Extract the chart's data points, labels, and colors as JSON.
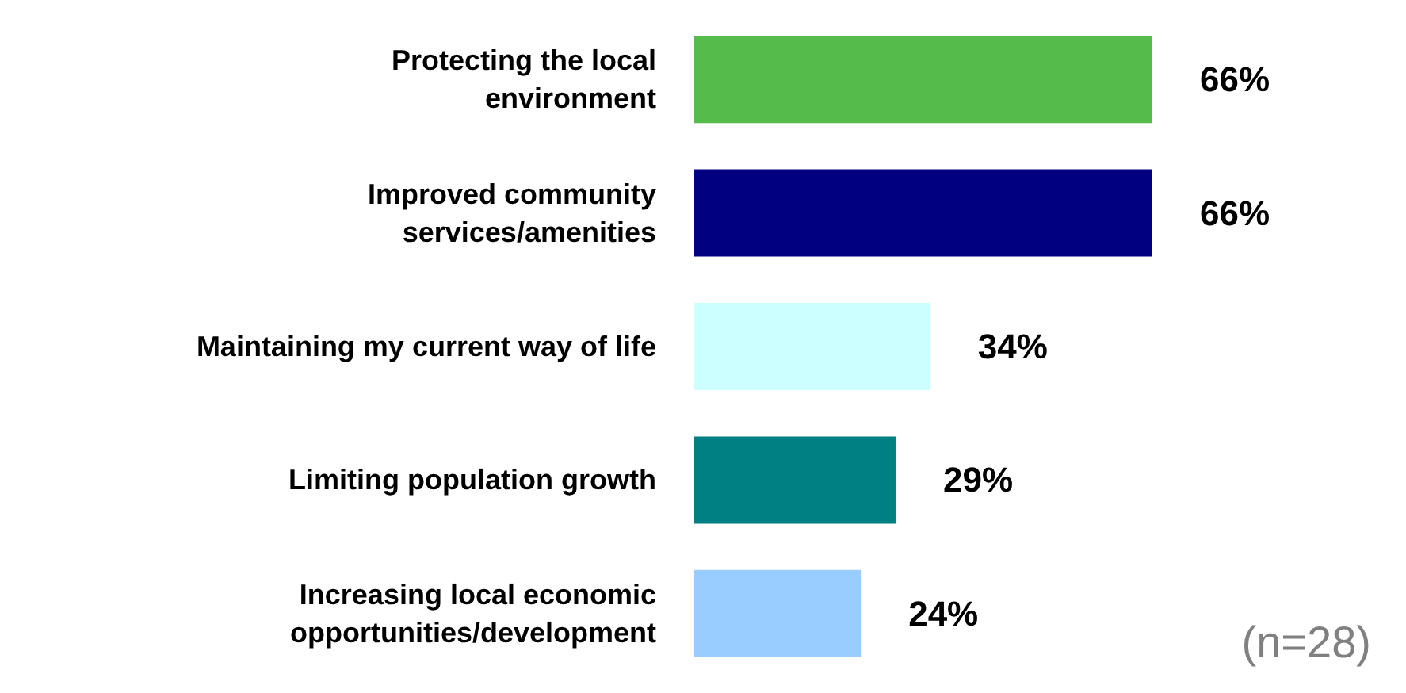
{
  "chart_data": {
    "type": "bar",
    "orientation": "horizontal",
    "categories": [
      "Protecting the local\nenvironment",
      "Improved community\nservices/amenities",
      "Maintaining my current way of life",
      "Limiting population growth",
      "Increasing local economic\nopportunities/development"
    ],
    "values": [
      66,
      66,
      34,
      29,
      24
    ],
    "colors": [
      "#55bb4b",
      "#000080",
      "#ccffff",
      "#008080",
      "#99ccff"
    ],
    "value_labels": [
      "66%",
      "66%",
      "34%",
      "29%",
      "24%"
    ],
    "annotations": [
      "(n=28)"
    ]
  }
}
